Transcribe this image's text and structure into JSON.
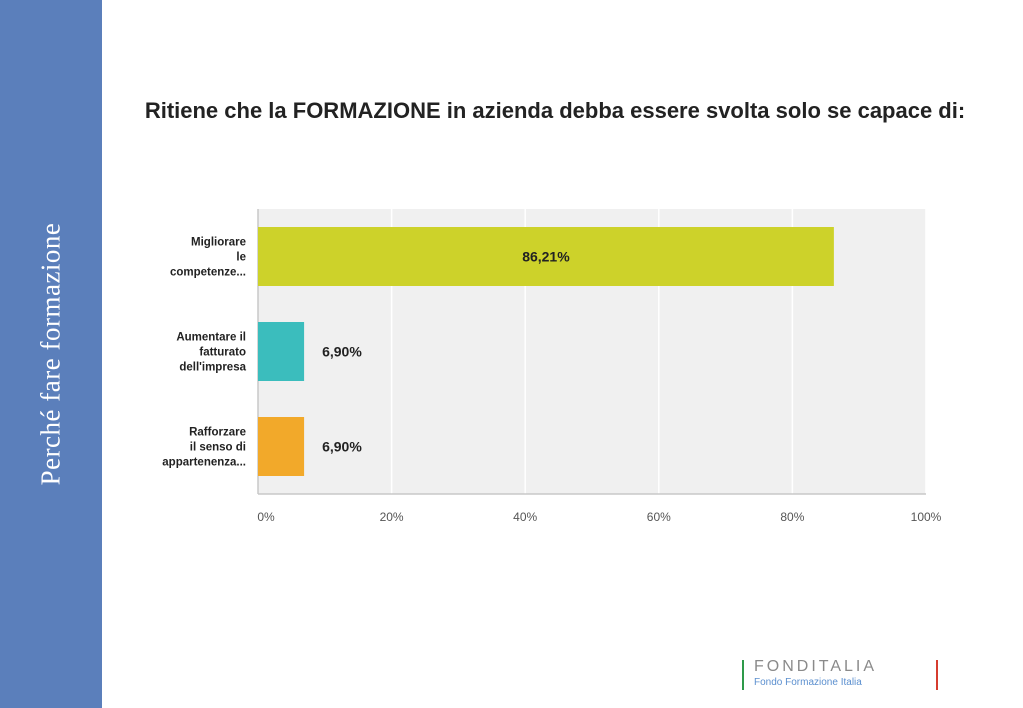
{
  "sidebar": {
    "title": "Perché fare formazione"
  },
  "logo": {
    "name": "FONDITALIA",
    "tagline": "Fondo Formazione Italia"
  },
  "chart_data": {
    "type": "bar",
    "orientation": "horizontal",
    "title": "Ritiene che la FORMAZIONE in azienda debba essere svolta solo se capace di:",
    "categories": [
      [
        "Migliorare",
        "le",
        "competenze..."
      ],
      [
        "Aumentare il",
        "fatturato",
        "dell'impresa"
      ],
      [
        "Rafforzare",
        "il senso di",
        "appartenenza..."
      ]
    ],
    "values": [
      86.21,
      6.9,
      6.9
    ],
    "data_labels": [
      "86,21%",
      "6,90%",
      "6,90%"
    ],
    "colors": [
      "#cdd22a",
      "#3bbdbd",
      "#f2a92a"
    ],
    "xlim": [
      0,
      100
    ],
    "xticks": [
      0,
      20,
      40,
      60,
      80,
      100
    ],
    "xtick_labels": [
      "0%",
      "20%",
      "40%",
      "60%",
      "80%",
      "100%"
    ],
    "grid": true,
    "plot_background": "#f0f0f0"
  }
}
